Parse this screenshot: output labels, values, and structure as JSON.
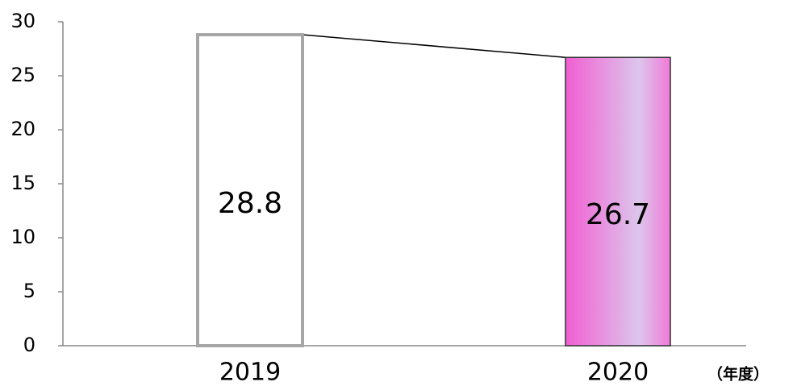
{
  "chart_data": {
    "type": "bar",
    "categories": [
      "2019",
      "2020"
    ],
    "values": [
      28.8,
      26.7
    ],
    "colors": [
      "#ffffff",
      "#f15ed2"
    ],
    "edge_colors": [
      "#a6a6a6",
      "#333333"
    ],
    "x_label": "（年度）",
    "ylim": [
      0,
      30
    ],
    "yticks": [
      0,
      5,
      10,
      15,
      20,
      25,
      30
    ],
    "grid": false
  }
}
